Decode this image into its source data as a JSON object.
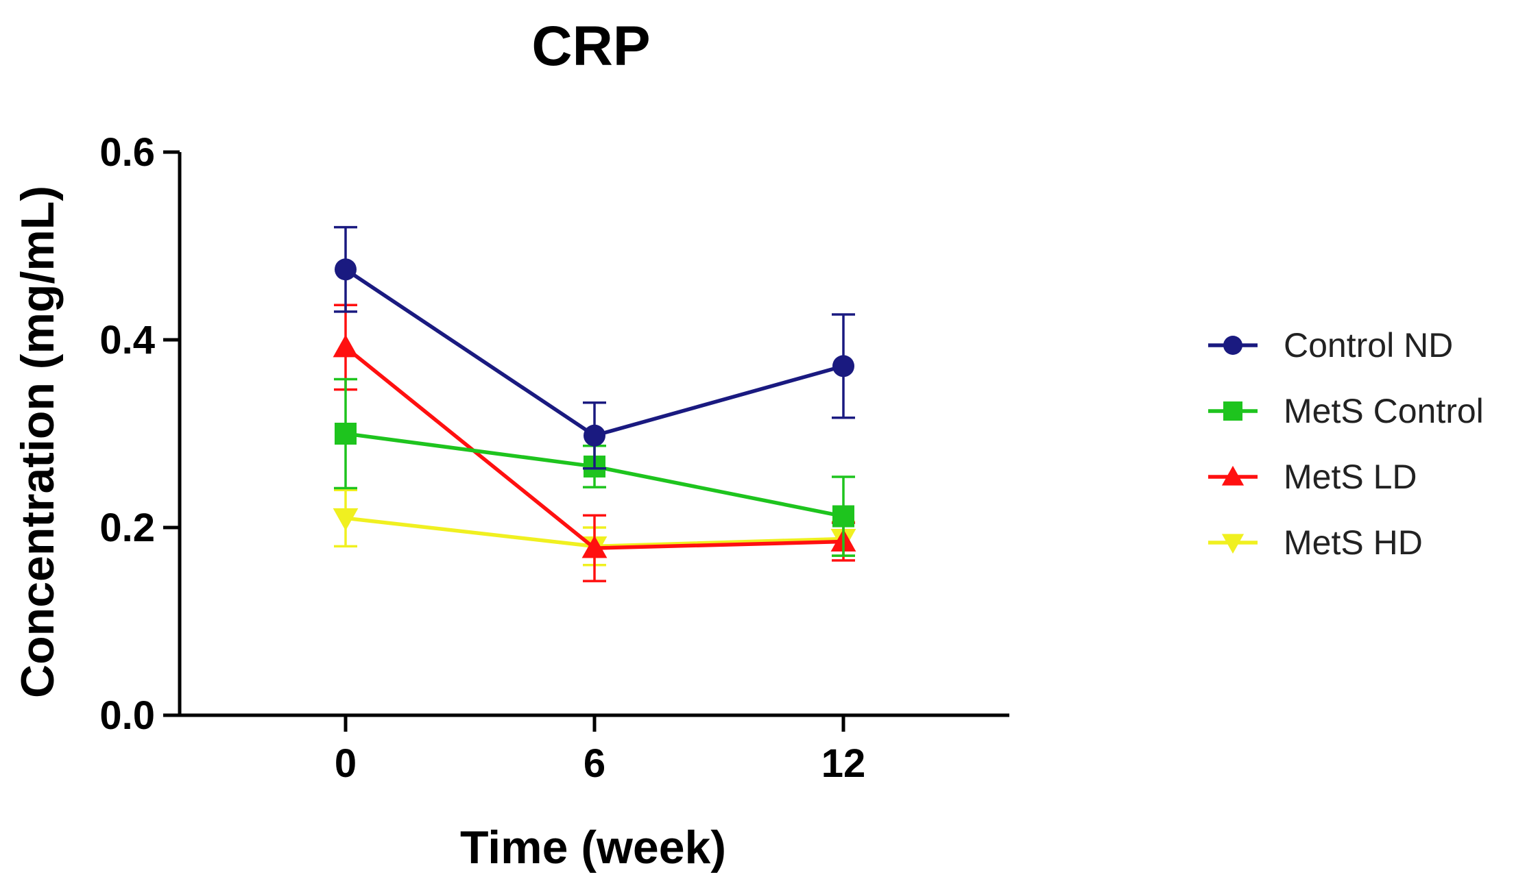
{
  "chart_data": {
    "type": "line",
    "title": "CRP",
    "xlabel": "Time (week)",
    "ylabel": "Concentration (mg/mL)",
    "x": [
      0,
      6,
      12
    ],
    "x_tick_labels": [
      "0",
      "6",
      "12"
    ],
    "xlim": [
      -4,
      16
    ],
    "ylim": [
      0,
      0.6
    ],
    "y_ticks": [
      0.0,
      0.2,
      0.4,
      0.6
    ],
    "y_tick_labels": [
      "0.0",
      "0.2",
      "0.4",
      "0.6"
    ],
    "legend_position": "right",
    "grid": false,
    "series": [
      {
        "name": "Control ND",
        "color": "#1a1a80",
        "marker": "circle",
        "values": [
          0.475,
          0.298,
          0.372
        ],
        "errors": [
          0.045,
          0.035,
          0.055
        ]
      },
      {
        "name": "MetS Control",
        "color": "#1ec41e",
        "marker": "square",
        "values": [
          0.3,
          0.265,
          0.212
        ],
        "errors": [
          0.058,
          0.022,
          0.042
        ]
      },
      {
        "name": "MetS LD",
        "color": "#ff1010",
        "marker": "triangle-up",
        "values": [
          0.392,
          0.178,
          0.185
        ],
        "errors": [
          0.045,
          0.035,
          0.02
        ]
      },
      {
        "name": "MetS HD",
        "color": "#f0f020",
        "marker": "triangle-down",
        "values": [
          0.21,
          0.18,
          0.188
        ],
        "errors": [
          0.03,
          0.02,
          0.018
        ]
      }
    ]
  }
}
